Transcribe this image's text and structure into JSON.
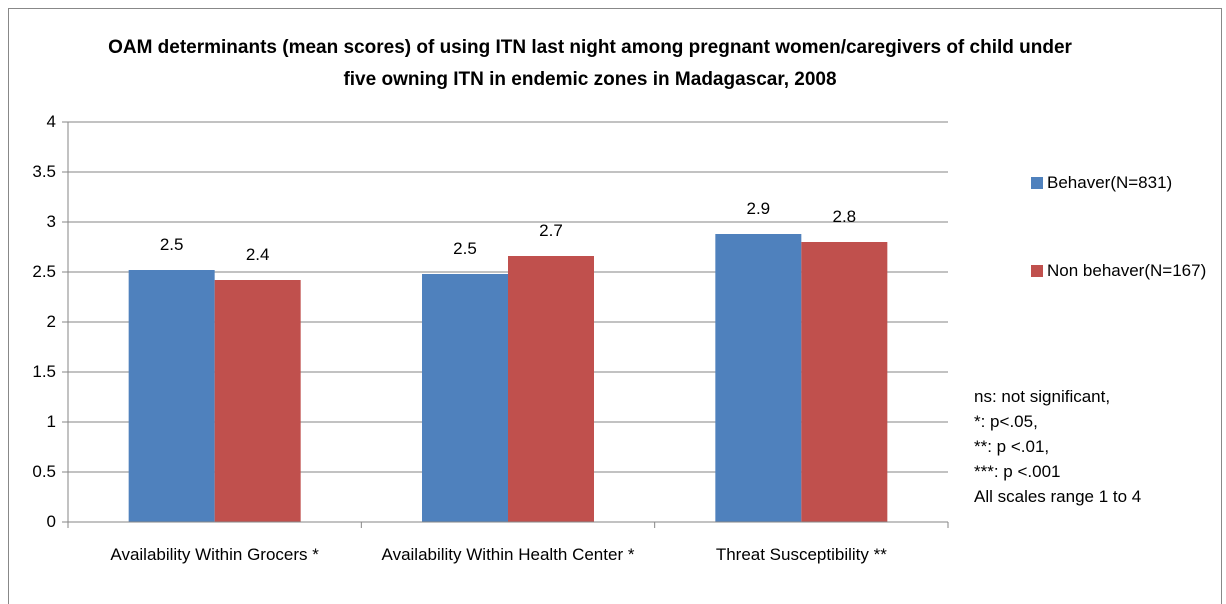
{
  "chart_data": {
    "type": "bar",
    "title": "OAM determinants (mean scores) of using ITN last night among pregnant women/caregivers of child under five owning ITN in endemic zones in Madagascar, 2008",
    "categories": [
      "Availability Within Grocers *",
      "Availability Within Health Center *",
      "Threat Susceptibility **"
    ],
    "series": [
      {
        "name": "Behaver(N=831)",
        "color": "#4f81bd",
        "values": [
          2.52,
          2.48,
          2.88
        ],
        "value_labels": [
          "2.5",
          "2.5",
          "2.9"
        ]
      },
      {
        "name": "Non behaver(N=167)",
        "color": "#c0504d",
        "values": [
          2.42,
          2.66,
          2.8
        ],
        "value_labels": [
          "2.4",
          "2.7",
          "2.8"
        ]
      }
    ],
    "ylim": [
      0,
      4
    ],
    "yticks": [
      0,
      0.5,
      1,
      1.5,
      2,
      2.5,
      3,
      3.5,
      4
    ],
    "grid": true,
    "annotations": [
      "ns: not significant,",
      "*: p<.05,",
      "**: p <.01,",
      "***: p <.001",
      "All scales range 1 to 4"
    ]
  }
}
